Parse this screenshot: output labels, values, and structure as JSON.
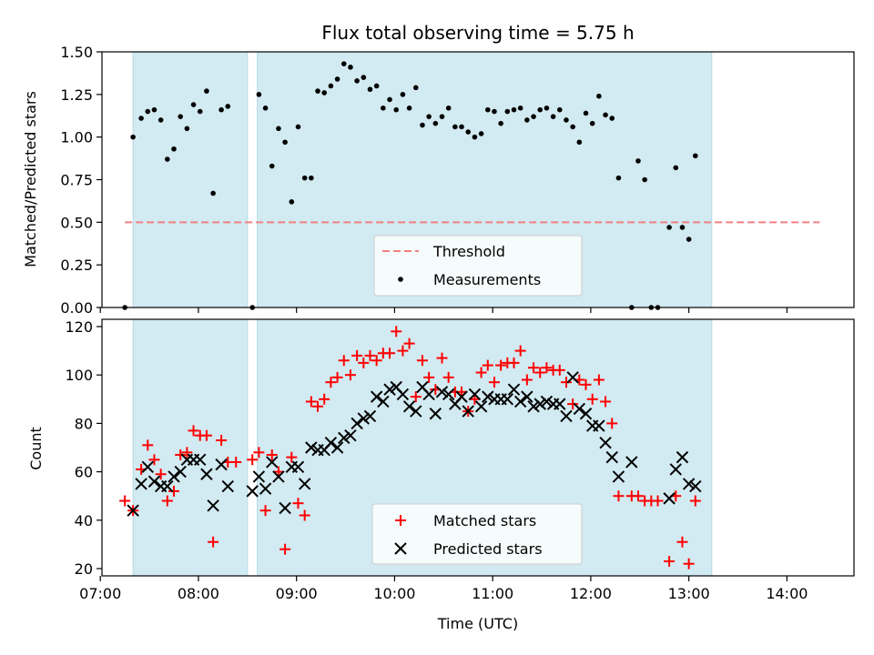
{
  "chart_data": [
    {
      "type": "scatter",
      "title": "Flux total observing time = 5.75 h",
      "xlabel": "",
      "ylabel": "Matched/Predicted stars",
      "xlim": [
        "07:01",
        "14:41"
      ],
      "ylim": [
        0,
        1.5
      ],
      "yticks": [
        "0.00",
        "0.25",
        "0.50",
        "0.75",
        "1.00",
        "1.25",
        "1.50"
      ],
      "shaded_intervals": [
        [
          "07:20",
          "08:30"
        ],
        [
          "08:36",
          "13:14"
        ]
      ],
      "shade_color": "#add8e6",
      "threshold": {
        "label": "Threshold",
        "value": 0.5,
        "x_from": "07:15",
        "x_to": "14:20",
        "color": "#f08080"
      },
      "legend_position": "lower center",
      "series": [
        {
          "name": "Measurements",
          "color": "#000000",
          "points": [
            [
              "07:15",
              0.0
            ],
            [
              "07:20",
              1.0
            ],
            [
              "07:25",
              1.11
            ],
            [
              "07:29",
              1.15
            ],
            [
              "07:33",
              1.16
            ],
            [
              "07:37",
              1.1
            ],
            [
              "07:41",
              0.87
            ],
            [
              "07:45",
              0.93
            ],
            [
              "07:49",
              1.12
            ],
            [
              "07:53",
              1.05
            ],
            [
              "07:57",
              1.19
            ],
            [
              "08:01",
              1.15
            ],
            [
              "08:05",
              1.27
            ],
            [
              "08:09",
              0.67
            ],
            [
              "08:14",
              1.16
            ],
            [
              "08:18",
              1.18
            ],
            [
              "08:33",
              0.0
            ],
            [
              "08:37",
              1.25
            ],
            [
              "08:41",
              1.17
            ],
            [
              "08:45",
              0.83
            ],
            [
              "08:49",
              1.05
            ],
            [
              "08:53",
              0.97
            ],
            [
              "08:57",
              0.62
            ],
            [
              "09:01",
              1.06
            ],
            [
              "09:05",
              0.76
            ],
            [
              "09:09",
              0.76
            ],
            [
              "09:13",
              1.27
            ],
            [
              "09:17",
              1.26
            ],
            [
              "09:21",
              1.3
            ],
            [
              "09:25",
              1.34
            ],
            [
              "09:29",
              1.43
            ],
            [
              "09:33",
              1.41
            ],
            [
              "09:37",
              1.33
            ],
            [
              "09:41",
              1.35
            ],
            [
              "09:45",
              1.28
            ],
            [
              "09:49",
              1.3
            ],
            [
              "09:53",
              1.17
            ],
            [
              "09:57",
              1.22
            ],
            [
              "10:01",
              1.16
            ],
            [
              "10:05",
              1.25
            ],
            [
              "10:09",
              1.17
            ],
            [
              "10:13",
              1.29
            ],
            [
              "10:17",
              1.07
            ],
            [
              "10:21",
              1.12
            ],
            [
              "10:25",
              1.08
            ],
            [
              "10:29",
              1.12
            ],
            [
              "10:33",
              1.17
            ],
            [
              "10:37",
              1.06
            ],
            [
              "10:41",
              1.06
            ],
            [
              "10:45",
              1.03
            ],
            [
              "10:49",
              1.0
            ],
            [
              "10:53",
              1.02
            ],
            [
              "10:57",
              1.16
            ],
            [
              "11:01",
              1.15
            ],
            [
              "11:05",
              1.08
            ],
            [
              "11:09",
              1.15
            ],
            [
              "11:13",
              1.16
            ],
            [
              "11:17",
              1.17
            ],
            [
              "11:21",
              1.1
            ],
            [
              "11:25",
              1.12
            ],
            [
              "11:29",
              1.16
            ],
            [
              "11:33",
              1.17
            ],
            [
              "11:37",
              1.12
            ],
            [
              "11:41",
              1.16
            ],
            [
              "11:45",
              1.1
            ],
            [
              "11:49",
              1.06
            ],
            [
              "11:53",
              0.97
            ],
            [
              "11:57",
              1.14
            ],
            [
              "12:01",
              1.08
            ],
            [
              "12:05",
              1.24
            ],
            [
              "12:09",
              1.13
            ],
            [
              "12:13",
              1.11
            ],
            [
              "12:17",
              0.76
            ],
            [
              "12:25",
              0.0
            ],
            [
              "12:29",
              0.86
            ],
            [
              "12:33",
              0.75
            ],
            [
              "12:37",
              0.0
            ],
            [
              "12:41",
              0.0
            ],
            [
              "12:48",
              0.47
            ],
            [
              "12:52",
              0.82
            ],
            [
              "12:56",
              0.47
            ],
            [
              "13:00",
              0.4
            ],
            [
              "13:04",
              0.89
            ]
          ]
        }
      ]
    },
    {
      "type": "scatter",
      "title": "",
      "xlabel": "Time (UTC)",
      "ylabel": "Count",
      "xlim": [
        "07:01",
        "14:41"
      ],
      "ylim": [
        17,
        123
      ],
      "yticks": [
        "20",
        "40",
        "60",
        "80",
        "100",
        "120"
      ],
      "xticks": [
        "07:00",
        "08:00",
        "09:00",
        "10:00",
        "11:00",
        "12:00",
        "13:00",
        "14:00"
      ],
      "shaded_intervals": [
        [
          "07:20",
          "08:30"
        ],
        [
          "08:36",
          "13:14"
        ]
      ],
      "shade_color": "#add8e6",
      "legend_position": "lower center",
      "series": [
        {
          "name": "Matched stars",
          "color": "#ff0000",
          "marker": "plus",
          "points": [
            [
              "07:15",
              48
            ],
            [
              "07:20",
              44
            ],
            [
              "07:25",
              61
            ],
            [
              "07:29",
              71
            ],
            [
              "07:33",
              65
            ],
            [
              "07:37",
              59
            ],
            [
              "07:41",
              48
            ],
            [
              "07:45",
              52
            ],
            [
              "07:49",
              67
            ],
            [
              "07:53",
              68
            ],
            [
              "07:57",
              77
            ],
            [
              "08:01",
              75
            ],
            [
              "08:05",
              75
            ],
            [
              "08:09",
              31
            ],
            [
              "08:14",
              73
            ],
            [
              "08:18",
              64
            ],
            [
              "08:23",
              64
            ],
            [
              "08:33",
              65
            ],
            [
              "08:37",
              68
            ],
            [
              "08:41",
              44
            ],
            [
              "08:45",
              67
            ],
            [
              "08:49",
              60
            ],
            [
              "08:53",
              28
            ],
            [
              "08:57",
              66
            ],
            [
              "09:01",
              47
            ],
            [
              "09:05",
              42
            ],
            [
              "09:09",
              89
            ],
            [
              "09:13",
              87
            ],
            [
              "09:17",
              90
            ],
            [
              "09:21",
              97
            ],
            [
              "09:25",
              99
            ],
            [
              "09:29",
              106
            ],
            [
              "09:33",
              100
            ],
            [
              "09:37",
              108
            ],
            [
              "09:41",
              105
            ],
            [
              "09:45",
              108
            ],
            [
              "09:49",
              106
            ],
            [
              "09:53",
              109
            ],
            [
              "09:57",
              109
            ],
            [
              "10:01",
              118
            ],
            [
              "10:05",
              110
            ],
            [
              "10:09",
              113
            ],
            [
              "10:13",
              91
            ],
            [
              "10:17",
              106
            ],
            [
              "10:21",
              99
            ],
            [
              "10:25",
              94
            ],
            [
              "10:29",
              107
            ],
            [
              "10:33",
              99
            ],
            [
              "10:37",
              93
            ],
            [
              "10:41",
              93
            ],
            [
              "10:45",
              85
            ],
            [
              "10:49",
              90
            ],
            [
              "10:53",
              101
            ],
            [
              "10:57",
              104
            ],
            [
              "11:01",
              97
            ],
            [
              "11:05",
              104
            ],
            [
              "11:09",
              105
            ],
            [
              "11:13",
              105
            ],
            [
              "11:17",
              110
            ],
            [
              "11:21",
              98
            ],
            [
              "11:25",
              103
            ],
            [
              "11:29",
              101
            ],
            [
              "11:33",
              103
            ],
            [
              "11:37",
              102
            ],
            [
              "11:41",
              102
            ],
            [
              "11:45",
              97
            ],
            [
              "11:49",
              88
            ],
            [
              "11:53",
              98
            ],
            [
              "11:57",
              96
            ],
            [
              "12:01",
              90
            ],
            [
              "12:05",
              98
            ],
            [
              "12:09",
              89
            ],
            [
              "12:13",
              80
            ],
            [
              "12:17",
              50
            ],
            [
              "12:25",
              50
            ],
            [
              "12:29",
              50
            ],
            [
              "12:33",
              48
            ],
            [
              "12:37",
              48
            ],
            [
              "12:41",
              48
            ],
            [
              "12:48",
              23
            ],
            [
              "12:52",
              50
            ],
            [
              "12:56",
              31
            ],
            [
              "13:00",
              22
            ],
            [
              "13:04",
              48
            ]
          ]
        },
        {
          "name": "Predicted stars",
          "color": "#000000",
          "marker": "x",
          "points": [
            [
              "07:20",
              44
            ],
            [
              "07:25",
              55
            ],
            [
              "07:29",
              62
            ],
            [
              "07:33",
              56
            ],
            [
              "07:37",
              54
            ],
            [
              "07:41",
              54
            ],
            [
              "07:45",
              58
            ],
            [
              "07:49",
              60
            ],
            [
              "07:53",
              65
            ],
            [
              "07:57",
              65
            ],
            [
              "08:01",
              65
            ],
            [
              "08:05",
              59
            ],
            [
              "08:09",
              46
            ],
            [
              "08:14",
              63
            ],
            [
              "08:18",
              54
            ],
            [
              "08:33",
              52
            ],
            [
              "08:37",
              58
            ],
            [
              "08:41",
              53
            ],
            [
              "08:45",
              64
            ],
            [
              "08:49",
              58
            ],
            [
              "08:53",
              45
            ],
            [
              "08:57",
              62
            ],
            [
              "09:01",
              62
            ],
            [
              "09:05",
              55
            ],
            [
              "09:09",
              70
            ],
            [
              "09:13",
              69
            ],
            [
              "09:17",
              69
            ],
            [
              "09:21",
              72
            ],
            [
              "09:25",
              70
            ],
            [
              "09:29",
              74
            ],
            [
              "09:33",
              75
            ],
            [
              "09:37",
              80
            ],
            [
              "09:41",
              82
            ],
            [
              "09:45",
              83
            ],
            [
              "09:49",
              91
            ],
            [
              "09:53",
              89
            ],
            [
              "09:57",
              94
            ],
            [
              "10:01",
              95
            ],
            [
              "10:05",
              92
            ],
            [
              "10:09",
              87
            ],
            [
              "10:13",
              85
            ],
            [
              "10:17",
              95
            ],
            [
              "10:21",
              92
            ],
            [
              "10:25",
              84
            ],
            [
              "10:29",
              93
            ],
            [
              "10:33",
              92
            ],
            [
              "10:37",
              88
            ],
            [
              "10:41",
              91
            ],
            [
              "10:45",
              85
            ],
            [
              "10:49",
              92
            ],
            [
              "10:53",
              87
            ],
            [
              "10:57",
              91
            ],
            [
              "11:01",
              90
            ],
            [
              "11:05",
              90
            ],
            [
              "11:09",
              90
            ],
            [
              "11:13",
              94
            ],
            [
              "11:17",
              89
            ],
            [
              "11:21",
              91
            ],
            [
              "11:25",
              87
            ],
            [
              "11:29",
              88
            ],
            [
              "11:33",
              89
            ],
            [
              "11:37",
              88
            ],
            [
              "11:41",
              88
            ],
            [
              "11:45",
              83
            ],
            [
              "11:49",
              99
            ],
            [
              "11:53",
              86
            ],
            [
              "11:57",
              84
            ],
            [
              "12:01",
              79
            ],
            [
              "12:05",
              79
            ],
            [
              "12:09",
              72
            ],
            [
              "12:13",
              66
            ],
            [
              "12:17",
              58
            ],
            [
              "12:25",
              64
            ],
            [
              "12:48",
              49
            ],
            [
              "12:52",
              61
            ],
            [
              "12:56",
              66
            ],
            [
              "13:00",
              55
            ],
            [
              "13:04",
              54
            ]
          ]
        }
      ]
    }
  ]
}
